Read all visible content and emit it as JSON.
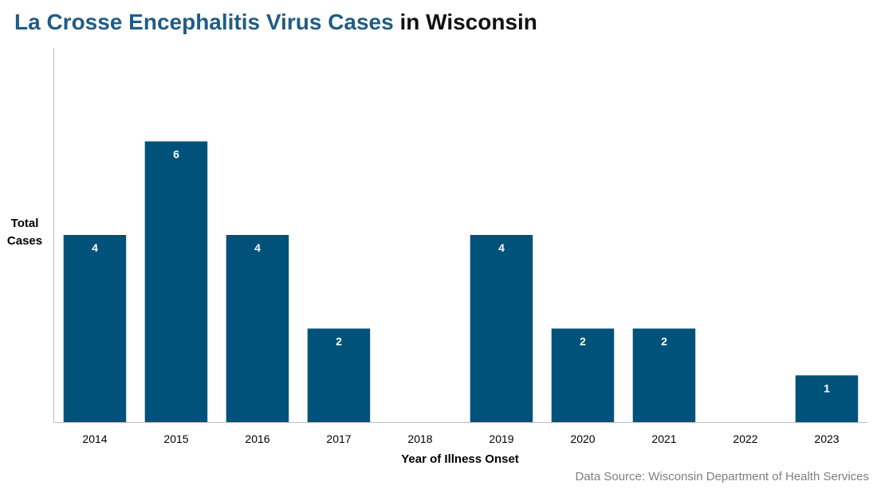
{
  "title": {
    "part1": "La Crosse Encephalitis Virus Cases",
    "part2": "in Wisconsin"
  },
  "source": "Data Source: Wisconsin Department of Health Services",
  "colors": {
    "bar": "#00527A",
    "title_accent": "#1F5C86",
    "axis": "#bfbfbf"
  },
  "chart_data": {
    "type": "bar",
    "title": "La Crosse Encephalitis Virus Cases in Wisconsin",
    "xlabel": "Year of Illness Onset",
    "ylabel_lines": [
      "Total",
      "Cases"
    ],
    "categories": [
      "2014",
      "2015",
      "2016",
      "2017",
      "2018",
      "2019",
      "2020",
      "2021",
      "2022",
      "2023"
    ],
    "values": [
      4,
      6,
      4,
      2,
      0,
      4,
      2,
      2,
      0,
      1
    ],
    "data_labels": [
      "4",
      "6",
      "4",
      "2",
      "",
      "4",
      "2",
      "2",
      "",
      "1"
    ],
    "ylim": [
      0,
      8
    ],
    "grid": false,
    "legend": "none"
  }
}
